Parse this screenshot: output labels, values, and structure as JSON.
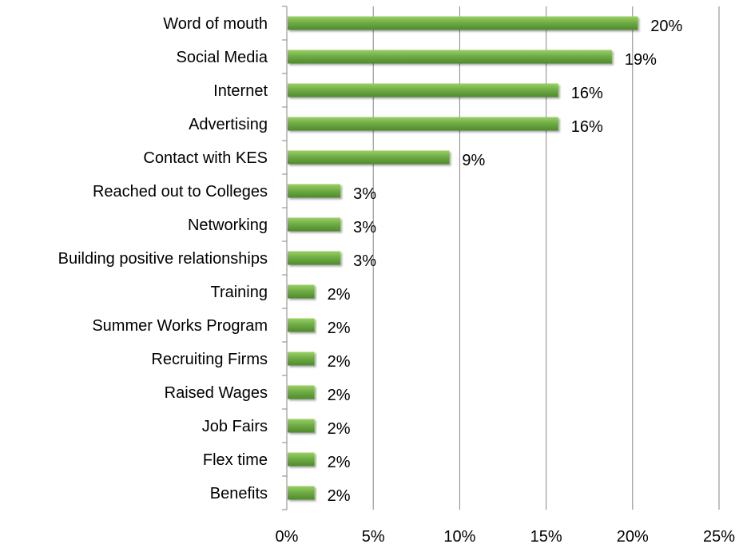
{
  "chart_data": {
    "type": "bar",
    "orientation": "horizontal",
    "categories": [
      "Word of mouth",
      "Social Media",
      "Internet",
      "Advertising",
      "Contact with KES",
      "Reached out to Colleges",
      "Networking",
      "Building positive relationships",
      "Training",
      "Summer Works Program",
      "Recruiting Firms",
      "Raised Wages",
      "Job Fairs",
      "Flex time",
      "Benefits"
    ],
    "values": [
      20.3,
      18.8,
      15.7,
      15.7,
      9.4,
      3.1,
      3.1,
      3.1,
      1.6,
      1.6,
      1.6,
      1.6,
      1.6,
      1.6,
      1.6
    ],
    "value_labels": [
      "20%",
      "19%",
      "16%",
      "16%",
      "9%",
      "3%",
      "3%",
      "3%",
      "2%",
      "2%",
      "2%",
      "2%",
      "2%",
      "2%",
      "2%"
    ],
    "xlim": [
      0,
      25
    ],
    "xticks": [
      0,
      5,
      10,
      15,
      20,
      25
    ],
    "xtick_labels": [
      "0%",
      "5%",
      "10%",
      "15%",
      "20%",
      "25%"
    ],
    "grid": "vertical",
    "bar_color": "#70ad47",
    "bar_color_light": "#9bd064",
    "bar_color_dark": "#4f8a2c",
    "title": "",
    "xlabel": "",
    "ylabel": ""
  }
}
